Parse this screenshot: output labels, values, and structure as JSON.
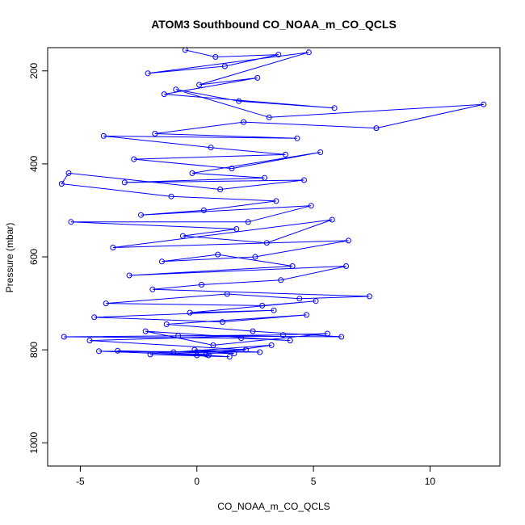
{
  "chart_data": {
    "type": "line",
    "title": "ATOM3 Southbound CO_NOAA_m_CO_QCLS",
    "xlabel": "CO_NOAA_m_CO_QCLS",
    "ylabel": "Pressure (mbar)",
    "xlim": [
      -6.4,
      13.0
    ],
    "ylim": [
      1050,
      150
    ],
    "y_reversed": true,
    "x_ticks": [
      -5,
      0,
      5,
      10
    ],
    "y_ticks": [
      200,
      400,
      600,
      800,
      1000
    ],
    "grid": false,
    "legend": "none",
    "marker": "open-circle",
    "series": [
      {
        "color": "#0000ff",
        "x": [
          -0.5,
          0.8,
          3.5,
          1.2,
          -2.1,
          4.8,
          0.1,
          2.6,
          -1.4,
          5.9,
          1.8,
          -0.9,
          3.1,
          12.3,
          7.7,
          2.0,
          -1.8,
          4.3,
          -4.0,
          0.6,
          3.8,
          -2.7,
          1.5,
          5.3,
          -0.2,
          2.9,
          -3.1,
          4.6,
          1.0,
          -5.5,
          -5.8,
          -1.1,
          3.4,
          0.3,
          -2.4,
          4.9,
          2.2,
          -5.4,
          1.7,
          -0.6,
          3.0,
          5.8,
          -3.6,
          6.5,
          2.5,
          -1.5,
          0.9,
          4.1,
          -2.9,
          6.4,
          3.6,
          0.2,
          -1.9,
          7.4,
          4.4,
          1.3,
          -3.9,
          2.8,
          5.1,
          -0.3,
          3.3,
          -4.4,
          1.1,
          4.7,
          -1.3,
          2.4,
          6.2,
          -0.8,
          3.7,
          -5.7,
          1.9,
          4.0,
          -2.2,
          0.7,
          5.6,
          -4.6,
          2.1,
          -1.0,
          3.2,
          0.4,
          -3.4,
          1.6,
          -0.1,
          2.7,
          -4.2,
          0.5,
          1.4,
          -2.0,
          0.0
        ],
        "y": [
          155,
          170,
          165,
          190,
          205,
          160,
          230,
          215,
          250,
          280,
          265,
          240,
          300,
          272,
          323,
          310,
          335,
          345,
          340,
          365,
          380,
          390,
          410,
          375,
          420,
          430,
          440,
          435,
          455,
          420,
          443,
          470,
          480,
          500,
          510,
          490,
          525,
          525,
          540,
          555,
          570,
          520,
          580,
          565,
          600,
          610,
          595,
          620,
          640,
          620,
          650,
          660,
          670,
          685,
          690,
          680,
          700,
          705,
          695,
          720,
          715,
          730,
          740,
          725,
          745,
          760,
          772,
          770,
          768,
          772,
          775,
          780,
          760,
          790,
          765,
          780,
          800,
          805,
          790,
          810,
          802,
          808,
          800,
          805,
          803,
          812,
          815,
          810,
          812
        ]
      }
    ]
  }
}
